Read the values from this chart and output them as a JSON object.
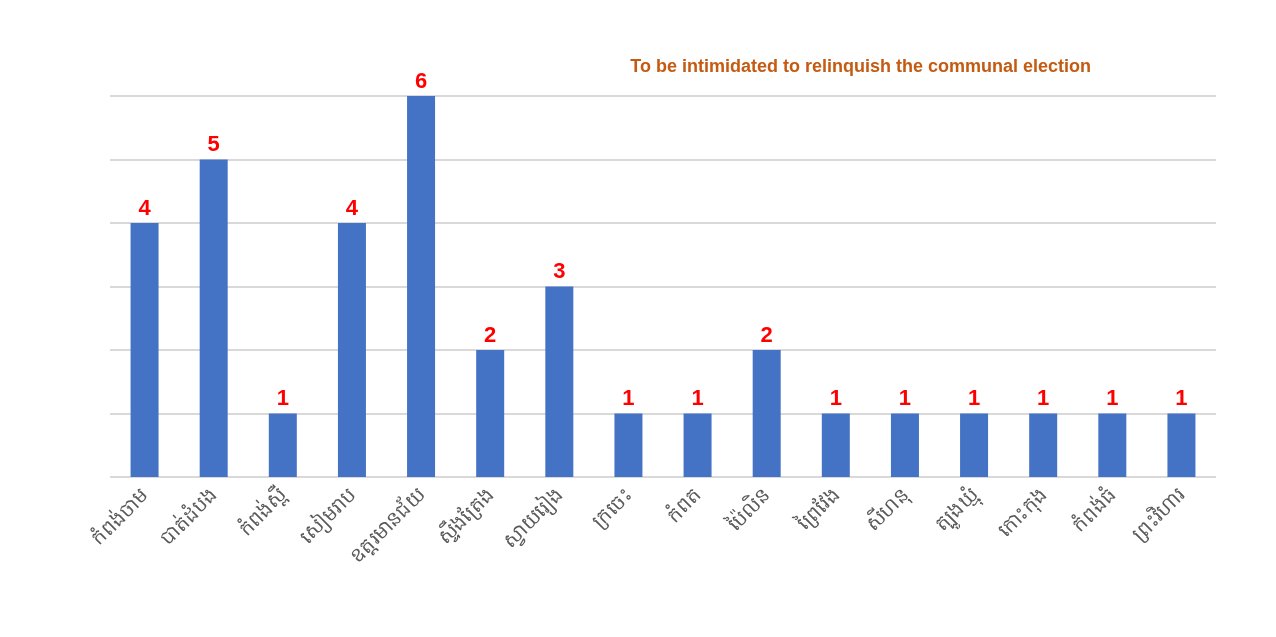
{
  "chart_data": {
    "type": "bar",
    "title": "To be intimidated to relinquish the communal election",
    "categories": [
      "កំពង់ចាម",
      "បាត់ដំបង",
      "កំពង់ស្ពឺ",
      "សៀមរាប",
      "ឧត្តរមានជ័យ",
      "ស្ទឹងត្រែង",
      "ស្វាយរៀង",
      "ក្រចេះ",
      "កំពត",
      "ប៉ៃលិន",
      "ព្រៃវែង",
      "សីហនុ",
      "ត្បូងឃ្មុំ",
      "កោះកុង",
      "កំពង់ធំ",
      "ព្រះវិហារ"
    ],
    "values": [
      4,
      5,
      1,
      4,
      6,
      2,
      3,
      1,
      1,
      2,
      1,
      1,
      1,
      1,
      1,
      1
    ],
    "color": "#4472c4",
    "ylim": [
      0,
      6
    ],
    "yticks": [
      {
        "value": 0,
        "label": null
      },
      {
        "value": 1,
        "label": null
      },
      {
        "value": 2,
        "label": null
      },
      {
        "value": 3,
        "label": null
      },
      {
        "value": 4,
        "label": null
      },
      {
        "value": 5,
        "label": null
      },
      {
        "value": 6,
        "label": null
      }
    ],
    "grid": "y",
    "data_labels": true,
    "tick_labels": "x"
  }
}
